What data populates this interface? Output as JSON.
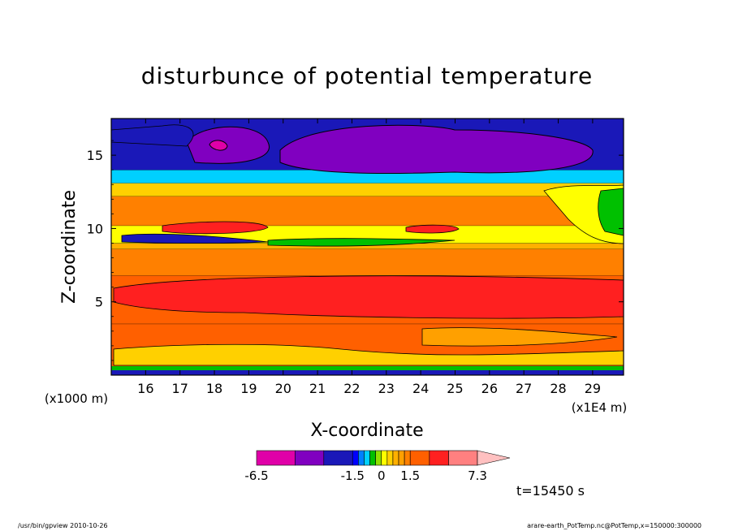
{
  "chart_data": {
    "type": "heatmap",
    "title": "disturbunce of potential temperature",
    "xlabel": "X-coordinate",
    "ylabel": "Z-coordinate",
    "x_unit": "(x1E4 m)",
    "y_unit": "(x1000 m)",
    "x_ticks": [
      "16",
      "17",
      "18",
      "19",
      "20",
      "21",
      "22",
      "23",
      "24",
      "25",
      "26",
      "27",
      "28",
      "29"
    ],
    "y_ticks": [
      "5",
      "10",
      "15"
    ],
    "xlim": [
      15,
      29.9
    ],
    "ylim": [
      0,
      17.5
    ],
    "colorbar": {
      "labels": [
        "-6.5",
        "-1.5",
        "0",
        "1.5",
        "7.3"
      ],
      "levels": [
        -6.5,
        -4.5,
        -3.0,
        -1.5,
        -1.2,
        -0.9,
        -0.6,
        -0.3,
        0,
        0.3,
        0.6,
        0.9,
        1.2,
        1.5,
        2.5,
        3.5,
        5.0,
        7.3
      ],
      "colors": [
        "#e000a8",
        "#8000c0",
        "#1a18b8",
        "#0000ff",
        "#0080ff",
        "#00d0ff",
        "#00c000",
        "#90e000",
        "#ffff00",
        "#ffd000",
        "#ffb000",
        "#ffa000",
        "#ff8000",
        "#ff6000",
        "#ff2020",
        "#ff8080",
        "#ffc0c0"
      ]
    },
    "field_bands": [
      {
        "z": [
          0.0,
          0.6
        ],
        "value": 0.0
      },
      {
        "z": [
          0.6,
          3.5
        ],
        "value": 1.5
      },
      {
        "z": [
          3.5,
          6.8
        ],
        "value": 2.2
      },
      {
        "z": [
          6.8,
          8.6
        ],
        "value": 1.4
      },
      {
        "z": [
          8.6,
          9.0
        ],
        "value": 0.8
      },
      {
        "z": [
          9.0,
          10.2
        ],
        "value": 0.2
      },
      {
        "z": [
          10.2,
          12.2
        ],
        "value": 1.3
      },
      {
        "z": [
          12.2,
          13.1
        ],
        "value": 0.5
      },
      {
        "z": [
          13.1,
          14.0
        ],
        "value": -0.8
      },
      {
        "z": [
          14.0,
          17.5
        ],
        "value": -1.8
      }
    ],
    "time_label": "t=15450 s"
  },
  "footer": {
    "left": "/usr/bin/gpview   2010-10-26",
    "right": "arare-earth_PotTemp.nc@PotTemp,x=150000:300000"
  }
}
